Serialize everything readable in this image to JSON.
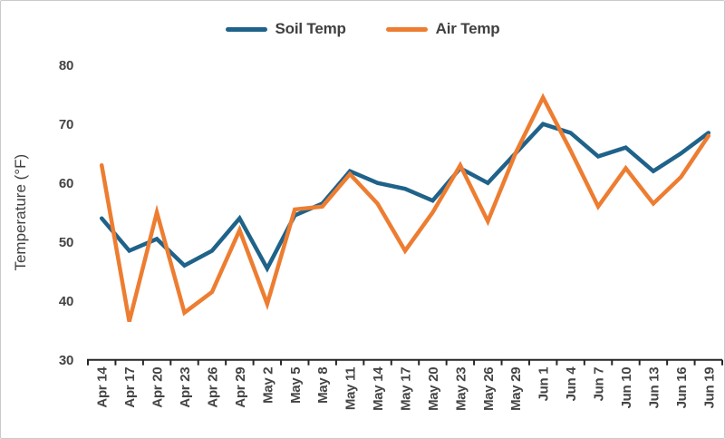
{
  "figure": {
    "background": "#ffffff",
    "border_color": "#c9c9c9"
  },
  "chart_data": {
    "type": "line",
    "title": "",
    "xlabel": "",
    "ylabel": "Temperature (°F)",
    "ylim": [
      30,
      80
    ],
    "yticks": [
      30,
      40,
      50,
      60,
      70,
      80
    ],
    "grid": false,
    "legend_position": "top",
    "x_label_rotation": -90,
    "axis_color": "#262626",
    "label_color": "#404040",
    "categories": [
      "Apr 14",
      "Apr 17",
      "Apr 20",
      "Apr 23",
      "Apr 26",
      "Apr 29",
      "May 2",
      "May 5",
      "May 8",
      "May 11",
      "May 14",
      "May 17",
      "May 20",
      "May 23",
      "May 26",
      "May 29",
      "Jun 1",
      "Jun 4",
      "Jun 7",
      "Jun 10",
      "Jun 13",
      "Jun 16",
      "Jun 19"
    ],
    "series": [
      {
        "name": "Soil Temp",
        "color": "#1F628A",
        "values": [
          54,
          48.5,
          50.5,
          46,
          48.5,
          54,
          45.5,
          54.5,
          56.5,
          62,
          60,
          59,
          57,
          62.5,
          60,
          65,
          70,
          68.5,
          64.5,
          66,
          62,
          65,
          68.5
        ]
      },
      {
        "name": "Air Temp",
        "color": "#ED7D31",
        "values": [
          63,
          36.5,
          55,
          38,
          41.5,
          52,
          39.5,
          55.5,
          56,
          61.5,
          56.5,
          48.5,
          55,
          63,
          53.5,
          65,
          74.5,
          65.5,
          56,
          62.5,
          56.5,
          61,
          68
        ]
      }
    ]
  }
}
